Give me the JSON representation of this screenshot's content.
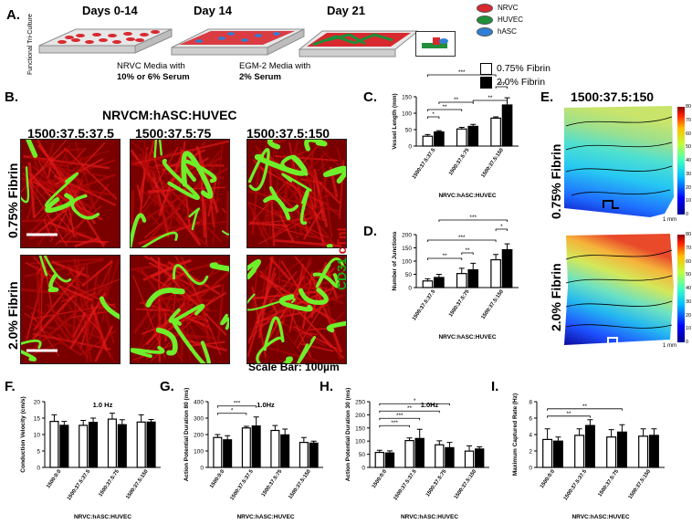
{
  "panel_letters": {
    "A": "A.",
    "B": "B.",
    "C": "C.",
    "D": "D.",
    "E": "E.",
    "F": "F.",
    "G": "G.",
    "H": "H.",
    "I": "I."
  },
  "panelA": {
    "side_label": "Functional Tri-Culture",
    "stages": [
      "Days 0-14",
      "Day 14",
      "Day 21"
    ],
    "media1_line1": "NRVC Media with",
    "media1_line2": "10% or 6% Serum",
    "media2_line1": "EGM-2 Media with",
    "media2_line2": "2% Serum",
    "cell_legend": [
      "NRVC",
      "HUVEC",
      "hASC"
    ],
    "cell_colors": [
      "#d8292f",
      "#1f8f3a",
      "#2f7fd6"
    ]
  },
  "fibrin_legend": [
    "0.75% Fibrin",
    "2.0% Fibrin"
  ],
  "panelB": {
    "title": "NRVCM:hASC:HUVEC",
    "columns": [
      "1500:37.5:37.5",
      "1500:37.5:75",
      "1500:37.5:150"
    ],
    "rows": [
      "0.75% Fibrin",
      "2.0% Fibrin"
    ],
    "stain_green": "CD31",
    "stain_red": "cTnI",
    "scale_bar": "Scale Bar: 100µm"
  },
  "panelE": {
    "title": "1500:37.5:150",
    "rows": [
      "0.75% Fibrin",
      "2.0% Fibrin"
    ],
    "colorbar_ticks": [
      "80",
      "70",
      "60",
      "50",
      "40",
      "30",
      "20",
      "10",
      "0"
    ],
    "scale": "1 mm"
  },
  "chart_data": [
    {
      "id": "C",
      "type": "bar",
      "ylabel": "Vessel Length (mm)",
      "xlabel": "NRVC:hASC:HUVEC",
      "ylim": [
        0,
        150
      ],
      "yticks": [
        0,
        50,
        100,
        150
      ],
      "categories": [
        "1500:37.5:37.5",
        "1500:37.5:75",
        "1500:37.5:150"
      ],
      "series": [
        {
          "name": "0.75% Fibrin",
          "values": [
            30,
            52,
            85
          ],
          "errors": [
            5,
            5,
            4
          ]
        },
        {
          "name": "2.0% Fibrin",
          "values": [
            43,
            60,
            125
          ],
          "errors": [
            4,
            6,
            22
          ]
        }
      ],
      "significance": [
        "*",
        "**",
        "**",
        "***",
        "**",
        "***"
      ]
    },
    {
      "id": "D",
      "type": "bar",
      "ylabel": "Number of Junctions",
      "xlabel": "NRVC:hASC:HUVEC",
      "ylim": [
        0,
        200
      ],
      "yticks": [
        0,
        50,
        100,
        150,
        200
      ],
      "categories": [
        "1500:37.5:37.5",
        "1500:37.5:75",
        "1500:37.5:150"
      ],
      "series": [
        {
          "name": "0.75% Fibrin",
          "values": [
            25,
            53,
            105
          ],
          "errors": [
            8,
            20,
            20
          ]
        },
        {
          "name": "2.0% Fibrin",
          "values": [
            38,
            67,
            143
          ],
          "errors": [
            12,
            25,
            22
          ]
        }
      ],
      "significance": [
        "**",
        "**",
        "***",
        "***",
        "*"
      ]
    },
    {
      "id": "F",
      "type": "bar",
      "title": "1.0 Hz",
      "ylabel": "Conduction Velocity (cm/s)",
      "xlabel": "NRVC:hASC:HUVEC",
      "ylim": [
        0,
        20
      ],
      "yticks": [
        0,
        5,
        10,
        15,
        20
      ],
      "categories": [
        "1500:0:0",
        "1500:37.5:37.5",
        "1500:37.5:75",
        "1500:37.5:150"
      ],
      "series": [
        {
          "name": "0.75% Fibrin",
          "values": [
            14,
            12.8,
            14.7,
            13.8
          ],
          "errors": [
            2,
            1.5,
            1.8,
            2.2
          ]
        },
        {
          "name": "2.0% Fibrin",
          "values": [
            12.8,
            13.7,
            13,
            13.8
          ],
          "errors": [
            1.2,
            1.3,
            1.5,
            0.8
          ]
        }
      ],
      "significance": []
    },
    {
      "id": "G",
      "type": "bar",
      "title": "1.0Hz",
      "ylabel": "Action Potential Duration 80 (ms)",
      "xlabel": "NRVC:hASC:HUVEC",
      "ylim": [
        0,
        400
      ],
      "yticks": [
        0,
        100,
        200,
        300,
        400
      ],
      "categories": [
        "1500:0:0",
        "1500:37.5:37.5",
        "1500:37.5:75",
        "1500:37.5:150"
      ],
      "series": [
        {
          "name": "0.75% Fibrin",
          "values": [
            182,
            240,
            225,
            152
          ],
          "errors": [
            18,
            10,
            30,
            30
          ]
        },
        {
          "name": "2.0% Fibrin",
          "values": [
            168,
            252,
            198,
            148
          ],
          "errors": [
            25,
            55,
            35,
            12
          ]
        }
      ],
      "significance": [
        "*",
        "***"
      ]
    },
    {
      "id": "H",
      "type": "bar",
      "title": "1.0Hz",
      "ylabel": "Action Potential Duration 30 (ms)",
      "xlabel": "NRVC:hASC:HUVEC",
      "ylim": [
        0,
        250
      ],
      "yticks": [
        0,
        50,
        100,
        150,
        200,
        250
      ],
      "categories": [
        "1500:0:0",
        "1500:37.5:37.5",
        "1500:37.5:75",
        "1500:37.5:150"
      ],
      "series": [
        {
          "name": "0.75% Fibrin",
          "values": [
            57,
            102,
            86,
            62
          ],
          "errors": [
            8,
            10,
            15,
            20
          ]
        },
        {
          "name": "2.0% Fibrin",
          "values": [
            55,
            110,
            75,
            70
          ],
          "errors": [
            8,
            35,
            20,
            8
          ]
        }
      ],
      "significance": [
        "***",
        "***",
        "**",
        "*"
      ]
    },
    {
      "id": "I",
      "type": "bar",
      "ylabel": "Maximum Captured Rate (Hz)",
      "xlabel": "NRVC:hASC:HUVEC",
      "ylim": [
        0,
        8
      ],
      "yticks": [
        0,
        2,
        4,
        6,
        8
      ],
      "categories": [
        "1500:0:0",
        "1500:37.5:37.5",
        "1500:37.5:75",
        "1500:37.5:150"
      ],
      "series": [
        {
          "name": "0.75% Fibrin",
          "values": [
            3.4,
            3.9,
            3.7,
            3.8
          ],
          "errors": [
            1.3,
            0.8,
            0.9,
            0.9
          ]
        },
        {
          "name": "2.0% Fibrin",
          "values": [
            3.2,
            5.1,
            4.3,
            3.9
          ],
          "errors": [
            0.5,
            0.7,
            0.9,
            0.8
          ]
        }
      ],
      "significance": [
        "**",
        "**"
      ]
    }
  ]
}
